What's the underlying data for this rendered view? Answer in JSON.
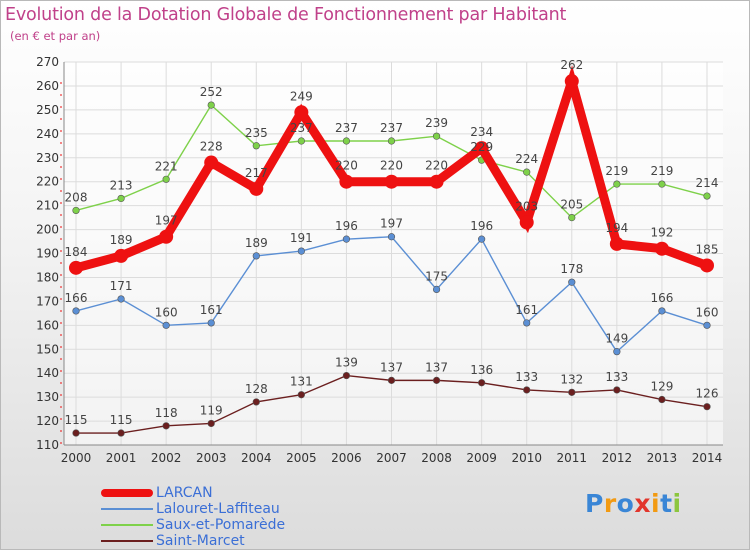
{
  "chart_data": {
    "type": "line",
    "title": "Evolution de la Dotation Globale de Fonctionnement par Habitant",
    "subtitle": "(en € et par an)",
    "xlabel": "",
    "ylabel": "",
    "ylim": [
      110,
      270
    ],
    "y_ticks": [
      "110",
      "120",
      "130",
      "140",
      "150",
      "160",
      "170",
      "180",
      "190",
      "200",
      "210",
      "220",
      "230",
      "240",
      "250",
      "260",
      "270"
    ],
    "categories": [
      "2000",
      "2001",
      "2002",
      "2003",
      "2004",
      "2005",
      "2006",
      "2007",
      "2008",
      "2009",
      "2010",
      "2011",
      "2012",
      "2013",
      "2014"
    ],
    "grid": true,
    "legend_position": "bottom-left",
    "series": [
      {
        "name": "Saint-Marcet",
        "color": "#6b1f1f",
        "values": [
          115,
          115,
          118,
          119,
          128,
          131,
          139,
          137,
          137,
          136,
          133,
          132,
          133,
          129,
          126
        ]
      },
      {
        "name": "Lalouret-Laffiteau",
        "color": "#5b8fd4",
        "values": [
          166,
          171,
          160,
          161,
          189,
          191,
          196,
          197,
          175,
          196,
          161,
          178,
          149,
          166,
          160
        ]
      },
      {
        "name": "Saux-et-Pomarède",
        "color": "#7ed14a",
        "values": [
          208,
          213,
          221,
          252,
          235,
          237,
          237,
          237,
          239,
          229,
          224,
          205,
          219,
          219,
          214
        ]
      },
      {
        "name": "LARCAN",
        "color": "#ee1111",
        "values": [
          184,
          189,
          197,
          228,
          217,
          249,
          220,
          220,
          220,
          234,
          203,
          262,
          194,
          192,
          185
        ]
      }
    ]
  },
  "legend": {
    "items": [
      {
        "label": "LARCAN",
        "color": "#ee1111"
      },
      {
        "label": "Lalouret-Laffiteau",
        "color": "#5b8fd4"
      },
      {
        "label": "Saux-et-Pomarède",
        "color": "#7ed14a"
      },
      {
        "label": "Saint-Marcet",
        "color": "#6b1f1f"
      }
    ]
  },
  "logo": {
    "text": "Proxiti",
    "letters": [
      {
        "ch": "P",
        "color": "#3a86d6"
      },
      {
        "ch": "r",
        "color": "#f29a12"
      },
      {
        "ch": "o",
        "color": "#3a86d6"
      },
      {
        "ch": "x",
        "color": "#e2352b"
      },
      {
        "ch": "i",
        "color": "#f29a12"
      },
      {
        "ch": "t",
        "color": "#3a86d6"
      },
      {
        "ch": "i",
        "color": "#8cc63e"
      }
    ]
  }
}
